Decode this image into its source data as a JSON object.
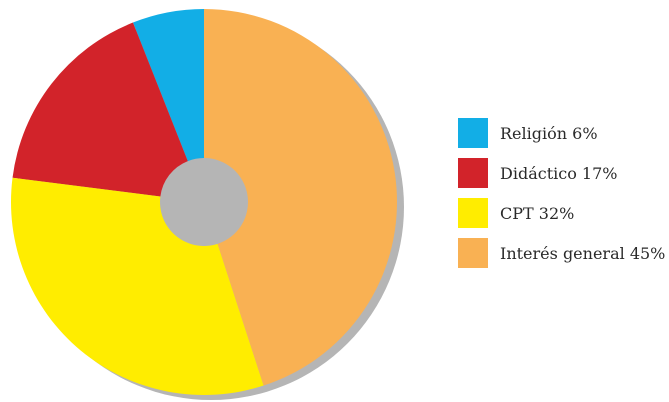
{
  "chart_data": {
    "type": "pie",
    "donut": true,
    "legend_position": "right",
    "slices": [
      {
        "label": "Religión 6%",
        "value": 6,
        "color": "#12aee6"
      },
      {
        "label": "Didáctico 17%",
        "value": 17,
        "color": "#d2232a"
      },
      {
        "label": "CPT 32%",
        "value": 32,
        "color": "#ffed00"
      },
      {
        "label": "Interés general 45%",
        "value": 45,
        "color": "#f9b153"
      }
    ],
    "shadow_color": "#b5b5b5"
  }
}
